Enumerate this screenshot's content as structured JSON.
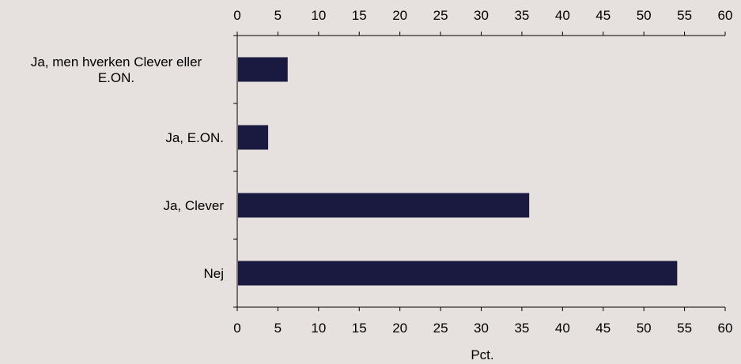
{
  "chart_data": {
    "type": "bar",
    "orientation": "horizontal",
    "categories": [
      "Ja, men hverken Clever eller E.ON.",
      "Ja, E.ON.",
      "Ja, Clever",
      "Nej"
    ],
    "category_lines": [
      [
        "Ja, men hverken Clever eller",
        "E.ON."
      ],
      [
        "Ja, E.ON."
      ],
      [
        "Ja, Clever"
      ],
      [
        "Nej"
      ]
    ],
    "values": [
      6.2,
      3.8,
      35.9,
      54.1
    ],
    "title": "",
    "xlabel": "Pct.",
    "ylabel": "",
    "xlim": [
      0,
      60
    ],
    "xticks": [
      0,
      5,
      10,
      15,
      20,
      25,
      30,
      35,
      40,
      45,
      50,
      55,
      60
    ],
    "xtick_labels": [
      "0",
      "5",
      "10",
      "15",
      "20",
      "25",
      "30",
      "35",
      "40",
      "45",
      "50",
      "55",
      "60"
    ],
    "x_axis_position": "top and bottom",
    "grid": false,
    "legend": "none",
    "colors": {
      "bar": "#1a1a40",
      "background": "#e6e0de",
      "axis": "#000000"
    }
  }
}
